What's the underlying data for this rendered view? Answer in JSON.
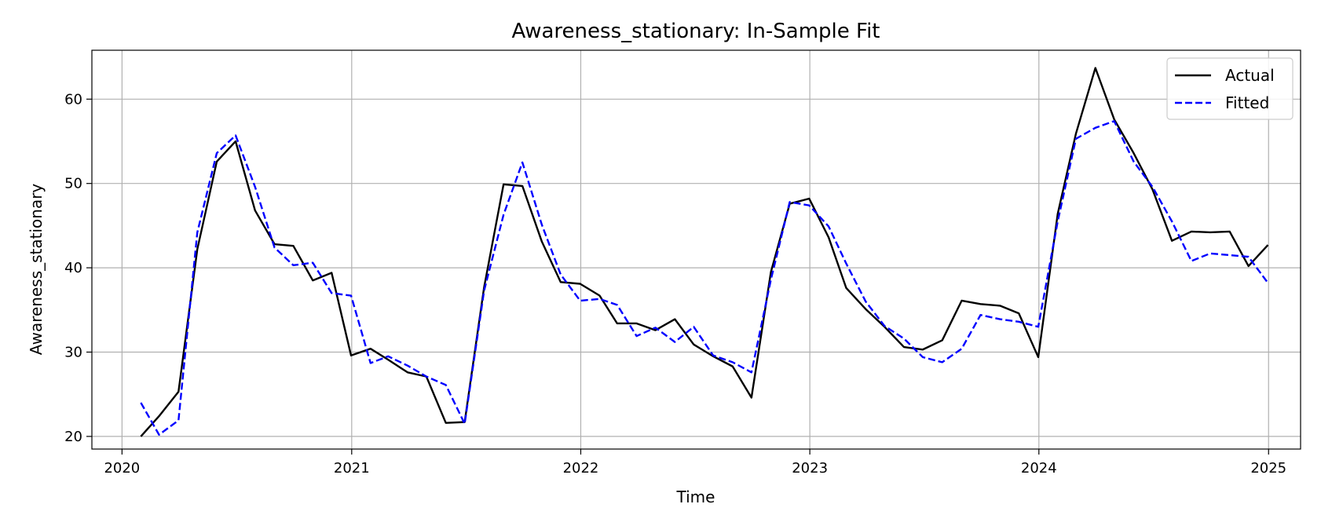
{
  "chart_data": {
    "type": "line",
    "title": "Awareness_stationary: In-Sample Fit",
    "xlabel": "Time",
    "ylabel": "Awareness_stationary",
    "xlim": [
      "2019-11-14",
      "2025-02-21"
    ],
    "ylim": [
      18.5,
      65.8
    ],
    "x_ticks": [
      "2020",
      "2021",
      "2022",
      "2023",
      "2024",
      "2025"
    ],
    "y_ticks": [
      20,
      30,
      40,
      50,
      60
    ],
    "grid": true,
    "legend_position": "top-right",
    "x": [
      "2020-01-31",
      "2020-02-29",
      "2020-03-31",
      "2020-04-30",
      "2020-05-31",
      "2020-06-30",
      "2020-07-31",
      "2020-08-31",
      "2020-09-30",
      "2020-10-31",
      "2020-11-30",
      "2020-12-31",
      "2021-01-31",
      "2021-02-28",
      "2021-03-31",
      "2021-04-30",
      "2021-05-31",
      "2021-06-30",
      "2021-07-31",
      "2021-08-31",
      "2021-09-30",
      "2021-10-31",
      "2021-11-30",
      "2021-12-31",
      "2022-01-31",
      "2022-02-28",
      "2022-03-31",
      "2022-04-30",
      "2022-05-31",
      "2022-06-30",
      "2022-07-31",
      "2022-08-31",
      "2022-09-30",
      "2022-10-31",
      "2022-11-30",
      "2022-12-31",
      "2023-01-31",
      "2023-02-28",
      "2023-03-31",
      "2023-04-30",
      "2023-05-31",
      "2023-06-30",
      "2023-07-31",
      "2023-08-31",
      "2023-09-30",
      "2023-10-31",
      "2023-11-30",
      "2023-12-31",
      "2024-01-31",
      "2024-02-29",
      "2024-03-31",
      "2024-04-30",
      "2024-05-31",
      "2024-06-30",
      "2024-07-31",
      "2024-08-31",
      "2024-09-30",
      "2024-10-31",
      "2024-11-30",
      "2024-12-31"
    ],
    "series": [
      {
        "name": "Actual",
        "color": "#000000",
        "dash": "solid",
        "values": [
          20.0,
          22.4,
          25.3,
          42.2,
          52.6,
          55.0,
          46.8,
          42.8,
          42.6,
          38.5,
          39.4,
          29.6,
          30.4,
          29.1,
          27.6,
          27.1,
          21.6,
          21.7,
          37.7,
          49.9,
          49.7,
          43.1,
          38.3,
          38.1,
          36.7,
          33.4,
          33.4,
          32.6,
          33.9,
          30.9,
          29.5,
          28.3,
          24.6,
          39.5,
          47.6,
          48.2,
          43.6,
          37.6,
          35.1,
          33.0,
          30.6,
          30.3,
          31.4,
          36.1,
          35.7,
          35.5,
          34.6,
          29.4,
          46.4,
          55.9,
          63.7,
          57.6,
          53.6,
          49.3,
          43.2,
          44.3,
          44.2,
          44.3,
          40.2,
          42.7
        ]
      },
      {
        "name": "Fitted",
        "color": "#0000ff",
        "dash": "dashed",
        "values": [
          24.0,
          20.2,
          21.9,
          44.2,
          53.6,
          55.7,
          49.6,
          42.4,
          40.3,
          40.6,
          37.0,
          36.7,
          28.7,
          29.5,
          28.4,
          27.1,
          26.1,
          21.5,
          37.3,
          46.3,
          52.5,
          45.1,
          39.2,
          36.1,
          36.3,
          35.6,
          31.9,
          32.9,
          31.2,
          33.0,
          29.6,
          28.8,
          27.6,
          38.6,
          47.8,
          47.4,
          44.9,
          40.5,
          36.0,
          33.1,
          31.6,
          29.4,
          28.8,
          30.4,
          34.4,
          33.9,
          33.6,
          33.0,
          45.5,
          55.3,
          56.6,
          57.4,
          52.6,
          49.6,
          45.5,
          40.8,
          41.7,
          41.5,
          41.3,
          38.2
        ]
      }
    ]
  }
}
